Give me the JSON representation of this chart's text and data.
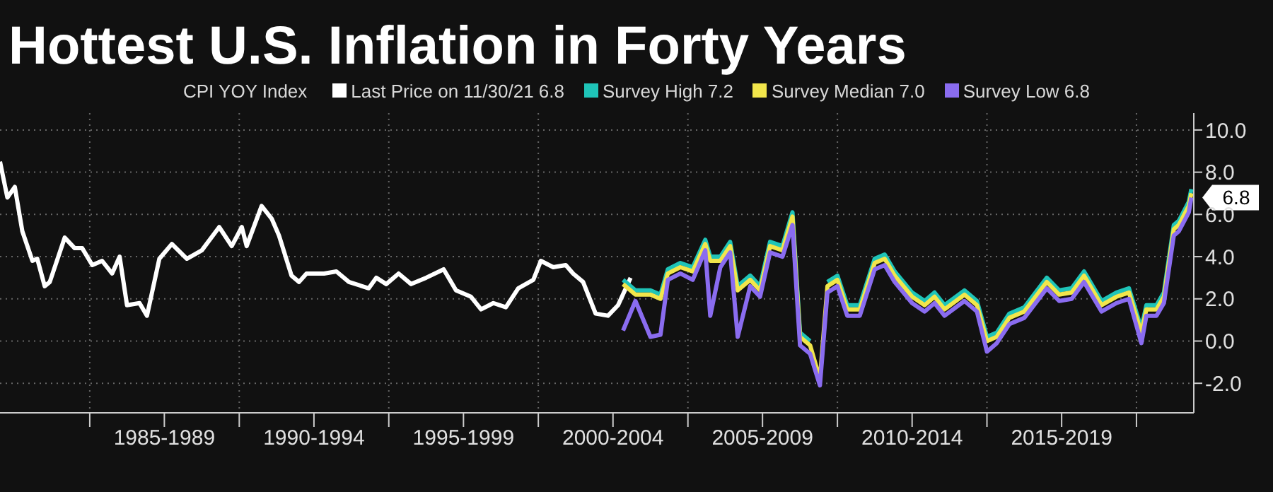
{
  "chart_data": {
    "type": "line",
    "title": "Hottest U.S. Inflation in Forty Years",
    "legend_title": "CPI YOY Index",
    "xlim": [
      "1982-01",
      "2021-12"
    ],
    "xticks": [
      {
        "value": "1985-01",
        "label": null
      },
      {
        "value": "1987-07",
        "label": "1985-1989"
      },
      {
        "value": "1990-01",
        "label": null
      },
      {
        "value": "1992-07",
        "label": "1990-1994"
      },
      {
        "value": "1995-01",
        "label": null
      },
      {
        "value": "1997-07",
        "label": "1995-1999"
      },
      {
        "value": "2000-01",
        "label": null
      },
      {
        "value": "2002-07",
        "label": "2000-2004"
      },
      {
        "value": "2005-01",
        "label": null
      },
      {
        "value": "2007-07",
        "label": "2005-2009"
      },
      {
        "value": "2010-01",
        "label": null
      },
      {
        "value": "2012-07",
        "label": "2010-2014"
      },
      {
        "value": "2015-01",
        "label": null
      },
      {
        "value": "2017-07",
        "label": "2015-2019"
      },
      {
        "value": "2020-01",
        "label": null
      }
    ],
    "ylim": [
      -3.4,
      10.8
    ],
    "yticks": [
      {
        "value": -2,
        "label": "-2.0"
      },
      {
        "value": 0,
        "label": "0.0"
      },
      {
        "value": 2,
        "label": "2.0"
      },
      {
        "value": 4,
        "label": "4.0"
      },
      {
        "value": 6,
        "label": "6.0"
      },
      {
        "value": 8,
        "label": "8.0"
      },
      {
        "value": 10,
        "label": "10.0"
      }
    ],
    "grid": true,
    "legend": "top",
    "marker": "none",
    "line_style": "solid",
    "annotations": [
      {
        "text": "6.8",
        "x": "2021-11",
        "y": 6.8
      }
    ],
    "series": [
      {
        "name": "Last Price on 11/30/21 6.8",
        "color": "#ffffff",
        "x": [
          "1982-01",
          "1982-04",
          "1982-07",
          "1982-10",
          "1983-02",
          "1983-04",
          "1983-07",
          "1983-09",
          "1984-03",
          "1984-07",
          "1984-10",
          "1985-02",
          "1985-06",
          "1985-10",
          "1986-01",
          "1986-04",
          "1986-09",
          "1986-12",
          "1987-05",
          "1987-10",
          "1988-04",
          "1988-10",
          "1989-05",
          "1989-10",
          "1990-02",
          "1990-04",
          "1990-10",
          "1991-02",
          "1991-05",
          "1991-10",
          "1992-01",
          "1992-04",
          "1992-11",
          "1993-04",
          "1993-09",
          "1994-05",
          "1994-08",
          "1994-12",
          "1995-05",
          "1995-10",
          "1996-04",
          "1996-11",
          "1997-04",
          "1997-10",
          "1998-02",
          "1998-07",
          "1998-12",
          "1999-05",
          "1999-11",
          "2000-02",
          "2000-07",
          "2000-12",
          "2001-03",
          "2001-07",
          "2001-12",
          "2002-05",
          "2002-09",
          "2003-02"
        ],
        "values": [
          8.5,
          6.8,
          7.3,
          5.2,
          3.8,
          3.9,
          2.6,
          2.8,
          4.9,
          4.4,
          4.4,
          3.6,
          3.8,
          3.2,
          4.0,
          1.7,
          1.8,
          1.2,
          3.9,
          4.6,
          3.9,
          4.3,
          5.4,
          4.5,
          5.4,
          4.5,
          6.4,
          5.8,
          5.0,
          3.1,
          2.8,
          3.2,
          3.2,
          3.3,
          2.8,
          2.5,
          3.0,
          2.7,
          3.2,
          2.7,
          3.0,
          3.4,
          2.4,
          2.1,
          1.5,
          1.8,
          1.6,
          2.5,
          2.9,
          3.8,
          3.5,
          3.6,
          3.2,
          2.8,
          1.3,
          1.2,
          1.7,
          3.0
        ]
      },
      {
        "name": "Survey High 7.2",
        "color": "#1fc4b8",
        "x": [
          "2002-11",
          "2003-04",
          "2003-10",
          "2004-02",
          "2004-05",
          "2004-10",
          "2005-03",
          "2005-08",
          "2005-10",
          "2006-02",
          "2006-06",
          "2006-09",
          "2007-02",
          "2007-06",
          "2007-10",
          "2008-03",
          "2008-07",
          "2008-10",
          "2009-02",
          "2009-06",
          "2009-09",
          "2010-01",
          "2010-05",
          "2010-10",
          "2011-04",
          "2011-08",
          "2011-12",
          "2012-07",
          "2012-12",
          "2013-04",
          "2013-08",
          "2014-04",
          "2014-09",
          "2015-01",
          "2015-05",
          "2015-10",
          "2016-04",
          "2017-01",
          "2017-06",
          "2017-11",
          "2018-04",
          "2018-11",
          "2019-05",
          "2019-10",
          "2020-03",
          "2020-05",
          "2020-09",
          "2020-12",
          "2021-04",
          "2021-06",
          "2021-10",
          "2021-11"
        ],
        "values": [
          2.9,
          2.4,
          2.4,
          2.2,
          3.4,
          3.7,
          3.5,
          4.8,
          4.0,
          4.0,
          4.7,
          2.6,
          3.1,
          2.6,
          4.7,
          4.5,
          6.1,
          0.4,
          0.0,
          null,
          2.8,
          3.1,
          1.7,
          1.7,
          3.9,
          4.1,
          3.3,
          2.3,
          1.9,
          2.3,
          1.7,
          2.4,
          1.9,
          0.2,
          0.4,
          1.3,
          1.6,
          3.0,
          2.4,
          2.5,
          3.3,
          1.9,
          2.3,
          2.5,
          0.6,
          1.7,
          1.7,
          2.3,
          5.5,
          5.7,
          6.6,
          7.2
        ]
      },
      {
        "name": "Survey Median 7.0",
        "color": "#f2e64b",
        "x": [
          "2002-11",
          "2003-04",
          "2003-10",
          "2004-02",
          "2004-05",
          "2004-10",
          "2005-03",
          "2005-08",
          "2005-10",
          "2006-02",
          "2006-06",
          "2006-09",
          "2007-02",
          "2007-06",
          "2007-10",
          "2008-03",
          "2008-07",
          "2008-10",
          "2009-02",
          "2009-06",
          "2009-09",
          "2010-01",
          "2010-05",
          "2010-10",
          "2011-04",
          "2011-08",
          "2011-12",
          "2012-07",
          "2012-12",
          "2013-04",
          "2013-08",
          "2014-04",
          "2014-09",
          "2015-01",
          "2015-05",
          "2015-10",
          "2016-04",
          "2017-01",
          "2017-06",
          "2017-11",
          "2018-04",
          "2018-11",
          "2019-05",
          "2019-10",
          "2020-03",
          "2020-05",
          "2020-09",
          "2020-12",
          "2021-04",
          "2021-06",
          "2021-10",
          "2021-11"
        ],
        "values": [
          2.7,
          2.2,
          2.2,
          2.0,
          3.2,
          3.5,
          3.3,
          4.6,
          3.8,
          3.8,
          4.5,
          2.4,
          2.9,
          2.4,
          4.5,
          4.3,
          5.9,
          0.2,
          -0.2,
          -1.8,
          2.6,
          2.9,
          1.5,
          1.5,
          3.7,
          3.9,
          3.1,
          2.1,
          1.7,
          2.1,
          1.5,
          2.2,
          1.7,
          0.0,
          0.2,
          1.1,
          1.4,
          2.8,
          2.2,
          2.3,
          3.1,
          1.7,
          2.1,
          2.3,
          0.4,
          1.5,
          1.5,
          2.1,
          5.3,
          5.5,
          6.4,
          7.0
        ]
      },
      {
        "name": "Survey Low 6.8",
        "color": "#8a6cf0",
        "x": [
          "2002-11",
          "2003-04",
          "2003-10",
          "2004-02",
          "2004-05",
          "2004-10",
          "2005-03",
          "2005-08",
          "2005-10",
          "2006-02",
          "2006-06",
          "2006-09",
          "2007-02",
          "2007-06",
          "2007-10",
          "2008-03",
          "2008-07",
          "2008-10",
          "2009-02",
          "2009-06",
          "2009-09",
          "2010-01",
          "2010-05",
          "2010-10",
          "2011-04",
          "2011-08",
          "2011-12",
          "2012-07",
          "2012-12",
          "2013-04",
          "2013-08",
          "2014-04",
          "2014-09",
          "2015-01",
          "2015-05",
          "2015-10",
          "2016-04",
          "2017-01",
          "2017-06",
          "2017-11",
          "2018-04",
          "2018-11",
          "2019-05",
          "2019-10",
          "2020-03",
          "2020-05",
          "2020-09",
          "2020-12",
          "2021-04",
          "2021-06",
          "2021-10",
          "2021-11"
        ],
        "values": [
          0.5,
          1.9,
          0.2,
          0.3,
          2.9,
          3.2,
          2.9,
          4.3,
          1.2,
          3.5,
          4.2,
          0.2,
          2.6,
          2.1,
          4.2,
          4.0,
          5.5,
          -0.2,
          -0.6,
          -2.1,
          2.3,
          2.6,
          1.2,
          1.2,
          3.4,
          3.6,
          2.8,
          1.8,
          1.4,
          1.8,
          1.2,
          1.9,
          1.4,
          -0.5,
          -0.1,
          0.8,
          1.1,
          2.5,
          1.9,
          2.0,
          2.8,
          1.4,
          1.8,
          2.0,
          -0.1,
          1.2,
          1.2,
          1.8,
          5.0,
          5.2,
          6.1,
          6.8
        ]
      }
    ]
  }
}
